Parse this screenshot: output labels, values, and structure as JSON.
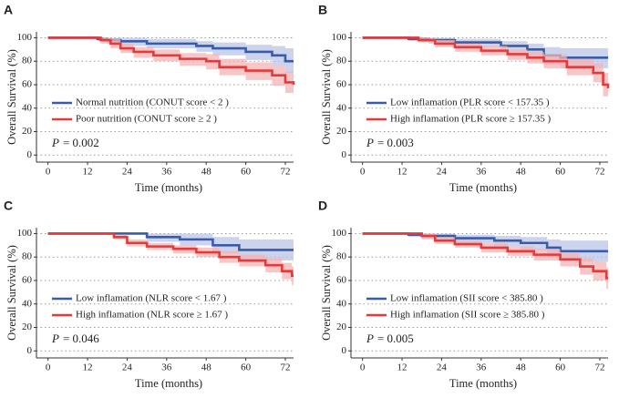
{
  "chart_data": [
    {
      "type": "step",
      "title": "A",
      "xlabel": "Time (months)",
      "ylabel": "Overall Survival (%)",
      "xlim": [
        -3.5,
        74.5
      ],
      "xticks": [
        0,
        12,
        24,
        36,
        48,
        60,
        72
      ],
      "ylim": [
        -6,
        105
      ],
      "yticks": [
        0,
        20,
        40,
        60,
        80,
        100
      ],
      "grid": true,
      "annotation": {
        "variable": "P",
        "text": "= 0.002"
      },
      "series": [
        {
          "name": "Normal nutrition (CONUT score < 2 )",
          "color": "#3a5ba9",
          "band_color": "#b9c6e6",
          "x": [
            0,
            15,
            18,
            22,
            30,
            45,
            50,
            60,
            68,
            72,
            74.5
          ],
          "values": [
            100,
            99,
            98,
            97,
            95,
            93,
            91,
            88,
            85,
            80,
            80
          ],
          "lower": [
            100,
            97,
            95,
            93,
            91,
            88,
            85,
            81,
            76,
            70,
            70
          ],
          "upper": [
            100,
            100,
            100,
            100,
            99,
            97,
            96,
            94,
            93,
            91,
            91
          ]
        },
        {
          "name": "Poor nutrition (CONUT score ≥ 2 )",
          "color": "#e8393a",
          "band_color": "#f4b3b3",
          "x": [
            0,
            12,
            16,
            19,
            22,
            26,
            32,
            40,
            48,
            52,
            60,
            68,
            72,
            74.5
          ],
          "values": [
            100,
            100,
            98,
            95,
            91,
            88,
            85,
            82,
            80,
            75,
            72,
            68,
            62,
            60
          ],
          "lower": [
            100,
            100,
            95,
            91,
            87,
            83,
            80,
            76,
            73,
            68,
            64,
            59,
            53,
            50
          ],
          "upper": [
            100,
            100,
            100,
            99,
            95,
            92,
            90,
            87,
            86,
            82,
            79,
            76,
            71,
            69
          ]
        }
      ]
    },
    {
      "type": "step",
      "title": "B",
      "xlabel": "Time (months)",
      "ylabel": "Overall Survival (%)",
      "xlim": [
        -3.5,
        74.5
      ],
      "xticks": [
        0,
        12,
        24,
        36,
        48,
        60,
        72
      ],
      "ylim": [
        -6,
        105
      ],
      "yticks": [
        0,
        20,
        40,
        60,
        80,
        100
      ],
      "grid": true,
      "annotation": {
        "variable": "P",
        "text": "= 0.003"
      },
      "series": [
        {
          "name": "Low inflamation (PLR score < 157.35 )",
          "color": "#3a5ba9",
          "band_color": "#b9c6e6",
          "x": [
            0,
            14,
            20,
            28,
            42,
            50,
            55,
            60,
            74.5
          ],
          "values": [
            100,
            99,
            98,
            96,
            93,
            90,
            85,
            83,
            83
          ],
          "lower": [
            100,
            97,
            95,
            92,
            88,
            84,
            77,
            74,
            74
          ],
          "upper": [
            100,
            100,
            100,
            99,
            97,
            95,
            92,
            91,
            91
          ]
        },
        {
          "name": "High inflamation (PLR score ≥ 157.35 )",
          "color": "#e8393a",
          "band_color": "#f4b3b3",
          "x": [
            0,
            12,
            17,
            22,
            28,
            36,
            44,
            50,
            55,
            62,
            70,
            73,
            74.5
          ],
          "values": [
            100,
            100,
            98,
            95,
            92,
            89,
            86,
            83,
            80,
            75,
            70,
            60,
            57
          ],
          "lower": [
            100,
            100,
            96,
            92,
            88,
            85,
            81,
            78,
            74,
            68,
            62,
            50,
            47
          ],
          "upper": [
            100,
            100,
            100,
            98,
            95,
            93,
            90,
            88,
            86,
            82,
            78,
            70,
            67
          ]
        }
      ]
    },
    {
      "type": "step",
      "title": "C",
      "xlabel": "Time (months)",
      "ylabel": "Overall Survival (%)",
      "xlim": [
        -3.5,
        74.5
      ],
      "xticks": [
        0,
        12,
        24,
        36,
        48,
        60,
        72
      ],
      "ylim": [
        -6,
        105
      ],
      "yticks": [
        0,
        20,
        40,
        60,
        80,
        100
      ],
      "grid": true,
      "annotation": {
        "variable": "P",
        "text": "= 0.046"
      },
      "series": [
        {
          "name": "Low inflamation (NLR score < 1.67 )",
          "color": "#3a5ba9",
          "band_color": "#b9c6e6",
          "x": [
            0,
            28,
            30,
            40,
            50,
            58,
            74.5
          ],
          "values": [
            100,
            100,
            97,
            95,
            90,
            86,
            86
          ],
          "lower": [
            100,
            100,
            93,
            90,
            83,
            77,
            77
          ],
          "upper": [
            100,
            100,
            100,
            100,
            97,
            95,
            95
          ]
        },
        {
          "name": "High inflamation (NLR score ≥ 1.67  )",
          "color": "#e8393a",
          "band_color": "#f4b3b3",
          "x": [
            0,
            16,
            20,
            24,
            30,
            38,
            45,
            52,
            58,
            66,
            71,
            74,
            74.5
          ],
          "values": [
            100,
            100,
            97,
            92,
            89,
            87,
            84,
            80,
            77,
            73,
            68,
            64,
            64
          ],
          "lower": [
            100,
            100,
            95,
            89,
            86,
            83,
            80,
            75,
            72,
            67,
            61,
            56,
            56
          ],
          "upper": [
            100,
            100,
            99,
            95,
            92,
            90,
            88,
            85,
            82,
            79,
            75,
            72,
            72
          ]
        }
      ]
    },
    {
      "type": "step",
      "title": "D",
      "xlabel": "Time (months)",
      "ylabel": "Overall Survival (%)",
      "xlim": [
        -3.5,
        74.5
      ],
      "xticks": [
        0,
        12,
        24,
        36,
        48,
        60,
        72
      ],
      "ylim": [
        -6,
        105
      ],
      "yticks": [
        0,
        20,
        40,
        60,
        80,
        100
      ],
      "grid": true,
      "annotation": {
        "variable": "P",
        "text": "= 0.005"
      },
      "series": [
        {
          "name": "Low inflamation (SII score < 385.80 )",
          "color": "#3a5ba9",
          "band_color": "#b9c6e6",
          "x": [
            0,
            14,
            18,
            28,
            40,
            48,
            56,
            60,
            74.5
          ],
          "values": [
            100,
            99,
            98,
            96,
            94,
            92,
            88,
            85,
            85
          ],
          "lower": [
            100,
            97,
            95,
            92,
            89,
            86,
            80,
            76,
            76
          ],
          "upper": [
            100,
            100,
            100,
            99,
            98,
            97,
            95,
            94,
            94
          ]
        },
        {
          "name": "High inflamation (SII score ≥ 385.80 )",
          "color": "#e8393a",
          "band_color": "#f4b3b3",
          "x": [
            0,
            12,
            18,
            22,
            28,
            36,
            44,
            52,
            60,
            66,
            70,
            74,
            74.5
          ],
          "values": [
            100,
            100,
            98,
            94,
            91,
            88,
            85,
            82,
            78,
            72,
            68,
            62,
            62
          ],
          "lower": [
            100,
            100,
            96,
            91,
            88,
            84,
            81,
            77,
            72,
            65,
            60,
            53,
            53
          ],
          "upper": [
            100,
            100,
            100,
            97,
            94,
            92,
            89,
            87,
            84,
            79,
            76,
            71,
            71
          ]
        }
      ]
    }
  ]
}
